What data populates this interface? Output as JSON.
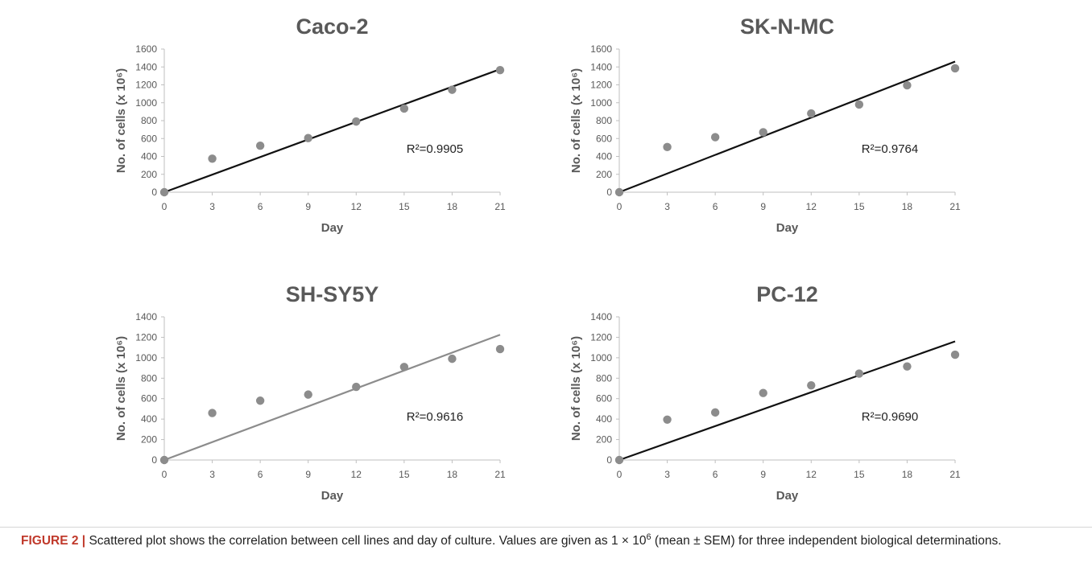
{
  "figure": {
    "caption_label": "FIGURE 2 |",
    "caption_before_sup": "Scattered plot shows the correlation between cell lines and day of culture. Values are given as 1 × 10",
    "caption_sup": "6",
    "caption_after_sup": " (mean ± SEM) for three independent biological determinations."
  },
  "colors": {
    "marker": "#8c8c8c",
    "trend_black": "#111111",
    "trend_gray": "#8c8c8c",
    "axis_text": "#595959",
    "axis_line": "#bfbfbf",
    "caption_label": "#c0392b"
  },
  "chart_data": [
    {
      "type": "scatter",
      "title": "Caco-2",
      "xlabel": "Day",
      "ylabel": "No. of cells (x 10⁶)",
      "x": [
        0,
        3,
        6,
        9,
        12,
        15,
        18,
        21
      ],
      "y": [
        0,
        375,
        520,
        605,
        790,
        935,
        1145,
        1365
      ],
      "xticks": [
        0,
        3,
        6,
        9,
        12,
        15,
        18,
        21
      ],
      "yticks": [
        0,
        200,
        400,
        600,
        800,
        1000,
        1200,
        1400,
        1600
      ],
      "xlim": [
        0,
        21
      ],
      "ylim": [
        0,
        1600
      ],
      "trendline": {
        "x": [
          0,
          21
        ],
        "y": [
          0,
          1375
        ]
      },
      "trend_color": "black",
      "annotation": "R²=0.9905"
    },
    {
      "type": "scatter",
      "title": "SK-N-MC",
      "xlabel": "Day",
      "ylabel": "No. of cells (x 10⁶)",
      "x": [
        0,
        3,
        6,
        9,
        12,
        15,
        18,
        21
      ],
      "y": [
        0,
        505,
        615,
        670,
        880,
        980,
        1195,
        1385
      ],
      "xticks": [
        0,
        3,
        6,
        9,
        12,
        15,
        18,
        21
      ],
      "yticks": [
        0,
        200,
        400,
        600,
        800,
        1000,
        1200,
        1400,
        1600
      ],
      "xlim": [
        0,
        21
      ],
      "ylim": [
        0,
        1600
      ],
      "trendline": {
        "x": [
          0,
          21
        ],
        "y": [
          0,
          1460
        ]
      },
      "trend_color": "black",
      "annotation": "R²=0.9764"
    },
    {
      "type": "scatter",
      "title": "SH-SY5Y",
      "xlabel": "Day",
      "ylabel": "No. of cells (x 10⁶)",
      "x": [
        0,
        3,
        6,
        9,
        12,
        15,
        18,
        21
      ],
      "y": [
        0,
        460,
        580,
        640,
        715,
        910,
        990,
        1085
      ],
      "xticks": [
        0,
        3,
        6,
        9,
        12,
        15,
        18,
        21
      ],
      "yticks": [
        0,
        200,
        400,
        600,
        800,
        1000,
        1200,
        1400
      ],
      "xlim": [
        0,
        21
      ],
      "ylim": [
        0,
        1400
      ],
      "trendline": {
        "x": [
          0,
          21
        ],
        "y": [
          0,
          1225
        ]
      },
      "trend_color": "gray",
      "annotation": "R²=0.9616"
    },
    {
      "type": "scatter",
      "title": "PC-12",
      "xlabel": "Day",
      "ylabel": "No. of cells (x 10⁶)",
      "x": [
        0,
        3,
        6,
        9,
        12,
        15,
        18,
        21
      ],
      "y": [
        0,
        395,
        465,
        655,
        730,
        845,
        915,
        1030
      ],
      "xticks": [
        0,
        3,
        6,
        9,
        12,
        15,
        18,
        21
      ],
      "yticks": [
        0,
        200,
        400,
        600,
        800,
        1000,
        1200,
        1400
      ],
      "xlim": [
        0,
        21
      ],
      "ylim": [
        0,
        1400
      ],
      "trendline": {
        "x": [
          0,
          21
        ],
        "y": [
          0,
          1160
        ]
      },
      "trend_color": "black",
      "annotation": "R²=0.9690"
    }
  ]
}
